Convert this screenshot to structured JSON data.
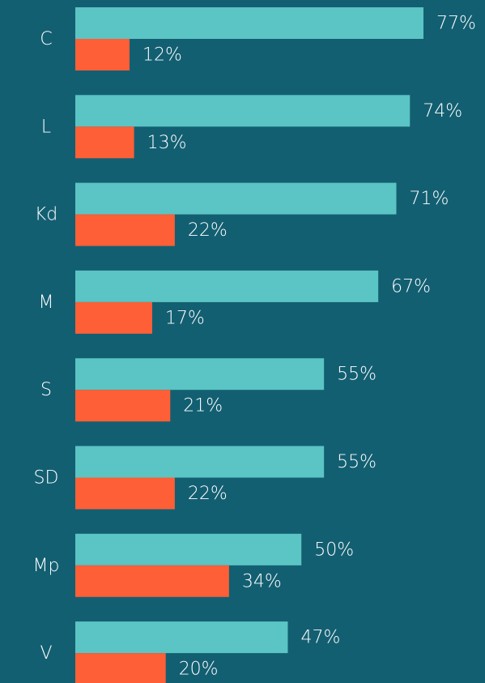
{
  "chart_data": {
    "type": "bar",
    "orientation": "horizontal",
    "categories": [
      "C",
      "L",
      "Kd",
      "M",
      "S",
      "SD",
      "Mp",
      "V"
    ],
    "series": [
      {
        "color": "#5bc4c4",
        "values": [
          77,
          74,
          71,
          67,
          55,
          55,
          50,
          47
        ],
        "value_labels": [
          "77%",
          "74%",
          "71%",
          "67%",
          "55%",
          "55%",
          "50%",
          "47%"
        ]
      },
      {
        "color": "#fe5f36",
        "values": [
          12,
          13,
          22,
          17,
          21,
          22,
          34,
          20
        ],
        "value_labels": [
          "12%",
          "13%",
          "22%",
          "17%",
          "21%",
          "22%",
          "34%",
          "20%"
        ]
      }
    ]
  }
}
